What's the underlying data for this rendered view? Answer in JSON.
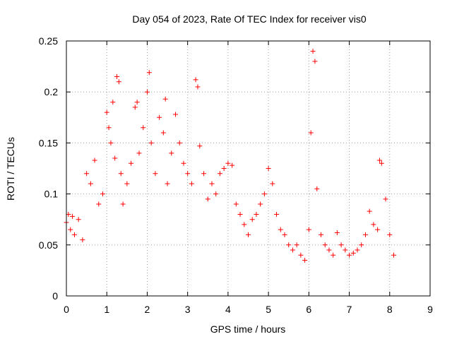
{
  "chart_data": {
    "type": "scatter",
    "title": "Day 054 of 2023, Rate Of TEC Index for receiver vis0",
    "xlabel": "GPS time / hours",
    "ylabel": "ROTI / TECUs",
    "xlim": [
      0,
      9
    ],
    "ylim": [
      0,
      0.25
    ],
    "xticks": [
      "0",
      "1",
      "2",
      "3",
      "4",
      "5",
      "6",
      "7",
      "8",
      "9"
    ],
    "yticks": [
      "0",
      "0.05",
      "0.1",
      "0.15",
      "0.2",
      "0.25"
    ],
    "grid": true,
    "marker": "+",
    "color": "#ff0000",
    "series": [
      {
        "x": [
          0.0,
          0.05,
          0.1,
          0.15,
          0.2,
          0.3,
          0.4,
          0.5,
          0.6,
          0.7,
          0.8,
          0.9,
          1.0,
          1.05,
          1.1,
          1.15,
          1.2,
          1.25,
          1.3,
          1.35,
          1.4,
          1.5,
          1.6,
          1.7,
          1.75,
          1.8,
          1.9,
          2.0,
          2.05,
          2.1,
          2.2,
          2.3,
          2.4,
          2.45,
          2.5,
          2.6,
          2.7,
          2.8,
          2.9,
          3.0,
          3.1,
          3.2,
          3.25,
          3.3,
          3.4,
          3.5,
          3.6,
          3.7,
          3.8,
          3.9,
          4.0,
          4.1,
          4.2,
          4.3,
          4.4,
          4.5,
          4.6,
          4.7,
          4.8,
          4.9,
          5.0,
          5.1,
          5.2,
          5.3,
          5.4,
          5.5,
          5.6,
          5.7,
          5.8,
          5.9,
          6.0,
          6.05,
          6.1,
          6.15,
          6.2,
          6.3,
          6.4,
          6.5,
          6.6,
          6.7,
          6.8,
          6.9,
          7.0,
          7.1,
          7.2,
          7.3,
          7.4,
          7.5,
          7.6,
          7.7,
          7.75,
          7.8,
          7.9,
          8.0,
          8.1
        ],
        "y": [
          0.072,
          0.08,
          0.065,
          0.078,
          0.06,
          0.075,
          0.055,
          0.12,
          0.11,
          0.133,
          0.09,
          0.1,
          0.18,
          0.165,
          0.15,
          0.19,
          0.135,
          0.215,
          0.21,
          0.12,
          0.09,
          0.11,
          0.13,
          0.185,
          0.19,
          0.14,
          0.165,
          0.2,
          0.219,
          0.15,
          0.12,
          0.175,
          0.16,
          0.193,
          0.11,
          0.14,
          0.178,
          0.15,
          0.13,
          0.12,
          0.11,
          0.212,
          0.205,
          0.147,
          0.12,
          0.095,
          0.11,
          0.1,
          0.12,
          0.125,
          0.13,
          0.128,
          0.09,
          0.08,
          0.07,
          0.06,
          0.075,
          0.08,
          0.09,
          0.1,
          0.125,
          0.11,
          0.08,
          0.065,
          0.06,
          0.05,
          0.045,
          0.05,
          0.04,
          0.035,
          0.065,
          0.16,
          0.24,
          0.23,
          0.105,
          0.06,
          0.05,
          0.045,
          0.04,
          0.062,
          0.05,
          0.045,
          0.04,
          0.042,
          0.045,
          0.05,
          0.06,
          0.083,
          0.07,
          0.065,
          0.133,
          0.13,
          0.095,
          0.06,
          0.04
        ]
      }
    ]
  }
}
